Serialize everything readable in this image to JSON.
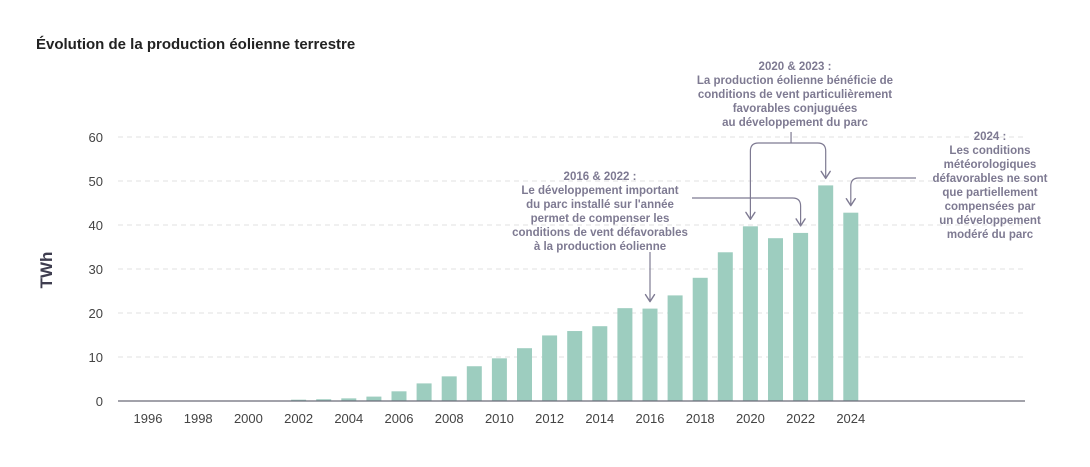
{
  "chart_data": {
    "type": "bar",
    "title": "Évolution de la production éolienne terrestre",
    "ylabel": "TWh",
    "xlabel": "",
    "ylim": [
      0,
      60
    ],
    "yticks": [
      0,
      10,
      20,
      30,
      40,
      50,
      60
    ],
    "grid": true,
    "x": [
      1996,
      1997,
      1998,
      1999,
      2000,
      2001,
      2002,
      2003,
      2004,
      2005,
      2006,
      2007,
      2008,
      2009,
      2010,
      2011,
      2012,
      2013,
      2014,
      2015,
      2016,
      2017,
      2018,
      2019,
      2020,
      2021,
      2022,
      2023,
      2024
    ],
    "values": [
      0,
      0,
      0,
      0,
      0,
      0.1,
      0.3,
      0.4,
      0.6,
      1.0,
      2.2,
      4.0,
      5.6,
      7.9,
      9.7,
      12.0,
      14.9,
      15.9,
      17.0,
      21.1,
      21.0,
      24.0,
      28.0,
      33.8,
      39.7,
      37.0,
      38.2,
      49.0,
      42.8
    ],
    "xticks": [
      "1996",
      "1998",
      "2000",
      "2002",
      "2004",
      "2006",
      "2008",
      "2010",
      "2012",
      "2014",
      "2016",
      "2018",
      "2020",
      "2022",
      "2024"
    ],
    "colors": {
      "bar": "#9dcdbf",
      "axis": "#6a6a78",
      "grid": "#e2e2e2",
      "annotation": "#7e7a92"
    },
    "annotations": [
      {
        "title": "2020 & 2023 :",
        "text": "La production éolienne bénéficie de\nconditions de vent particulièrement\nfavorables conjuguées\nau développement du parc",
        "targets": [
          2020,
          2023
        ]
      },
      {
        "title": "2016 & 2022 :",
        "text": "Le développement important\ndu parc installé sur l'année\npermet de compenser les\nconditions de vent défavorables\nà la production éolienne",
        "targets": [
          2016,
          2022
        ]
      },
      {
        "title": "2024 :",
        "text": "Les conditions\nmétéorologiques\ndéfavorables ne sont\nque partiellement\ncompensées par\nun développement\nmodéré du parc",
        "targets": [
          2024
        ]
      }
    ]
  }
}
